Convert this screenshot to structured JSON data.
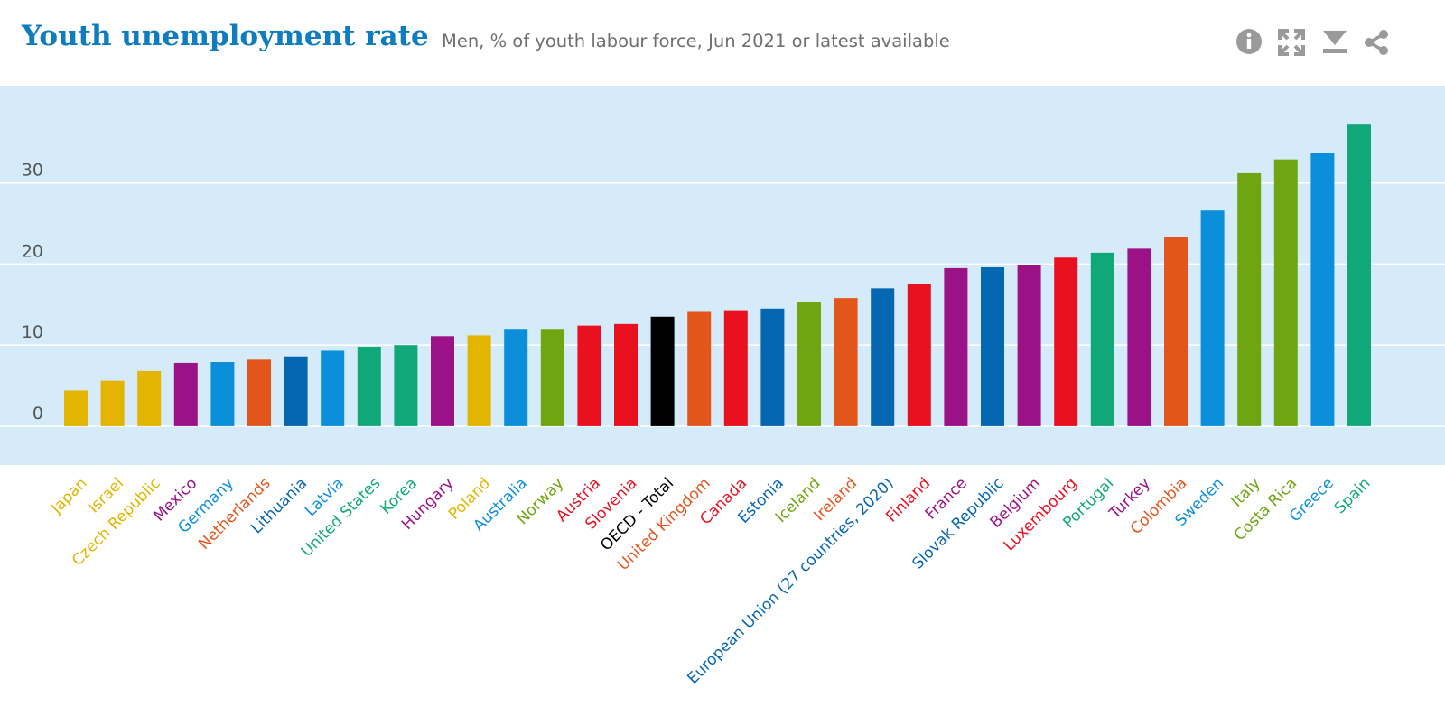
{
  "header": {
    "title": "Youth unemployment rate",
    "subtitle": "Men, % of youth labour force, Jun 2021 or latest available"
  },
  "toolbar": {
    "info_icon": "info-icon",
    "fullscreen_icon": "expand-icon",
    "download_icon": "download-icon",
    "share_icon": "share-icon"
  },
  "colors": {
    "plot_background": "#d5ebf9",
    "gridline": "#ffffff",
    "axis_text": "#555555",
    "icon": "#9a9a9a"
  },
  "chart_data": {
    "type": "bar",
    "title": "Youth unemployment rate",
    "subtitle": "Men, % of youth labour force, Jun 2021 or latest available",
    "xlabel": "",
    "ylabel": "",
    "ylim": [
      -4.8,
      42
    ],
    "yticks": [
      0,
      10,
      20,
      30
    ],
    "grid": true,
    "categories": [
      "Japan",
      "Israel",
      "Czech Republic",
      "Mexico",
      "Germany",
      "Netherlands",
      "Lithuania",
      "Latvia",
      "United States",
      "Korea",
      "Hungary",
      "Poland",
      "Australia",
      "Norway",
      "Austria",
      "Slovenia",
      "OECD - Total",
      "United Kingdom",
      "Canada",
      "Estonia",
      "Iceland",
      "Ireland",
      "European Union (27 countries, 2020)",
      "Finland",
      "France",
      "Slovak Republic",
      "Belgium",
      "Luxembourg",
      "Portugal",
      "Turkey",
      "Colombia",
      "Sweden",
      "Italy",
      "Costa Rica",
      "Greece",
      "Spain"
    ],
    "values": [
      4.4,
      5.6,
      6.8,
      7.8,
      7.9,
      8.2,
      8.6,
      9.3,
      9.8,
      10.0,
      11.1,
      11.2,
      12.0,
      12.0,
      12.4,
      12.6,
      13.5,
      14.2,
      14.3,
      14.5,
      15.3,
      15.8,
      17.0,
      17.5,
      19.5,
      19.6,
      19.9,
      20.8,
      21.4,
      21.9,
      23.3,
      26.6,
      31.2,
      32.9,
      33.7,
      37.3
    ],
    "bar_colors": [
      "#e3b500",
      "#e3b500",
      "#e3b500",
      "#9b1186",
      "#0b8fdb",
      "#e2561b",
      "#0566b1",
      "#0b8fdb",
      "#10a878",
      "#10a878",
      "#9b1186",
      "#e3b500",
      "#0b8fdb",
      "#6fa511",
      "#e9101f",
      "#e9101f",
      "#000000",
      "#e2561b",
      "#e9101f",
      "#0566b1",
      "#6fa511",
      "#e2561b",
      "#0566b1",
      "#e9101f",
      "#9b1186",
      "#0566b1",
      "#9b1186",
      "#e9101f",
      "#10a878",
      "#9b1186",
      "#e2561b",
      "#0b8fdb",
      "#6fa511",
      "#6fa511",
      "#0b8fdb",
      "#10a878"
    ]
  }
}
